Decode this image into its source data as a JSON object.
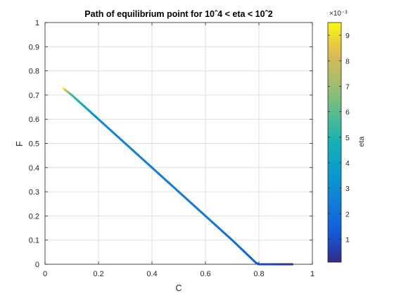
{
  "chart_data": {
    "type": "line",
    "title": "Path of equilibrium point for 10ˆ4 < eta < 10ˆ2",
    "xlabel": "C",
    "ylabel": "F",
    "xlim": [
      0,
      1
    ],
    "ylim": [
      0,
      1
    ],
    "x_ticks": [
      "0",
      "0.2",
      "0.4",
      "0.6",
      "0.8",
      "1"
    ],
    "y_ticks": [
      "0",
      "0.1",
      "0.2",
      "0.3",
      "0.4",
      "0.5",
      "0.6",
      "0.7",
      "0.8",
      "0.9",
      "1"
    ],
    "grid": true,
    "colormap": "parula",
    "colorbar": {
      "label": "eta",
      "exponent_label": "×10⁻³",
      "min": 0.1,
      "max": 9.5,
      "tick_values": [
        1,
        2,
        3,
        4,
        5,
        6,
        7,
        8,
        9
      ],
      "tick_labels": [
        "1",
        "2",
        "3",
        "4",
        "5",
        "6",
        "7",
        "8",
        "9"
      ]
    },
    "series": [
      {
        "x": [
          0.068,
          0.1,
          0.2,
          0.3,
          0.4,
          0.5,
          0.6,
          0.7,
          0.79,
          0.8,
          0.86,
          0.925
        ],
        "y": [
          0.728,
          0.7,
          0.6,
          0.5,
          0.4,
          0.3,
          0.2,
          0.1,
          0.005,
          0.0,
          0.0,
          0.0
        ],
        "color_values": [
          9.5,
          5.5,
          3.0,
          2.7,
          2.5,
          2.4,
          2.3,
          2.0,
          1.4,
          1.0,
          0.6,
          0.2
        ]
      }
    ]
  }
}
